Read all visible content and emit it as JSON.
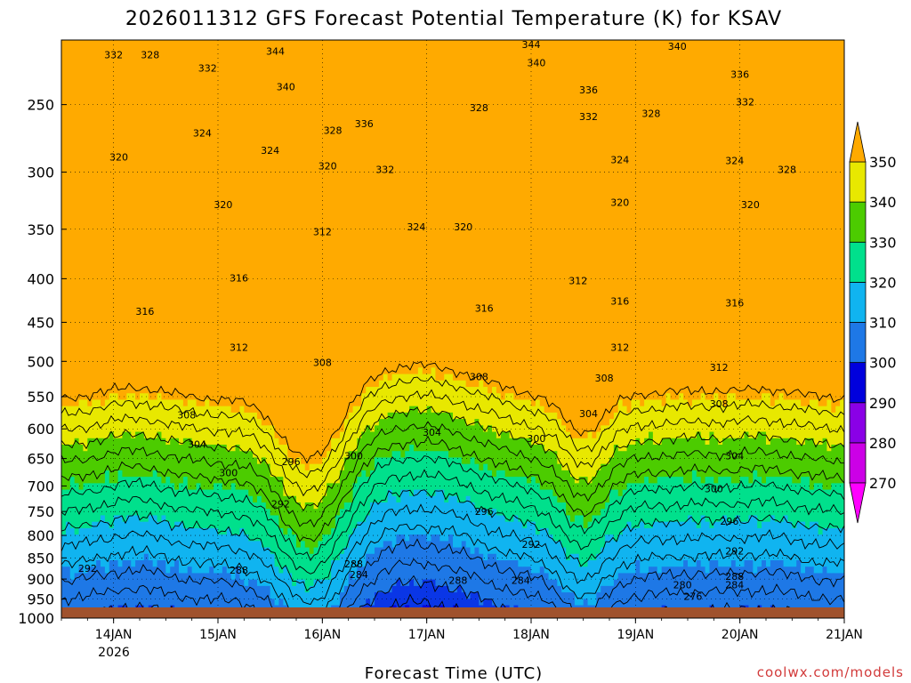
{
  "chart_data": {
    "type": "heatmap",
    "title": "2026011312 GFS Forecast Potential Temperature (K) for KSAV",
    "xlabel": "Forecast Time (UTC)",
    "ylabel": "",
    "x_ticks": [
      "14JAN",
      "15JAN",
      "16JAN",
      "17JAN",
      "18JAN",
      "19JAN",
      "20JAN",
      "21JAN"
    ],
    "x_year_label": "2026",
    "y_ticks": [
      250,
      300,
      350,
      400,
      450,
      500,
      550,
      600,
      650,
      700,
      750,
      800,
      850,
      900,
      950,
      1000
    ],
    "y_scale": "log",
    "ylim": [
      1000,
      210
    ],
    "colorbar": {
      "levels": [
        270,
        280,
        290,
        300,
        310,
        320,
        330,
        340,
        350
      ],
      "colors": [
        "#ff00ff",
        "#cc00e6",
        "#8a00e6",
        "#0000dd",
        "#0a36e6",
        "#1e78e6",
        "#10b4f0",
        "#00e08c",
        "#4ccc00",
        "#e8e800",
        "#ffaa00"
      ],
      "extends": "both"
    },
    "isentrope_labels": [
      {
        "t": 14.0,
        "p": 220,
        "v": "332"
      },
      {
        "t": 14.35,
        "p": 220,
        "v": "328"
      },
      {
        "t": 14.9,
        "p": 228,
        "v": "332"
      },
      {
        "t": 15.55,
        "p": 218,
        "v": "344"
      },
      {
        "t": 15.65,
        "p": 240,
        "v": "340"
      },
      {
        "t": 14.05,
        "p": 290,
        "v": "320"
      },
      {
        "t": 14.85,
        "p": 272,
        "v": "324"
      },
      {
        "t": 15.5,
        "p": 285,
        "v": "324"
      },
      {
        "t": 16.1,
        "p": 270,
        "v": "328"
      },
      {
        "t": 16.4,
        "p": 265,
        "v": "336"
      },
      {
        "t": 16.6,
        "p": 300,
        "v": "332"
      },
      {
        "t": 16.05,
        "p": 297,
        "v": "320"
      },
      {
        "t": 15.05,
        "p": 330,
        "v": "320"
      },
      {
        "t": 16.0,
        "p": 355,
        "v": "312"
      },
      {
        "t": 16.9,
        "p": 350,
        "v": "324"
      },
      {
        "t": 17.35,
        "p": 350,
        "v": "320"
      },
      {
        "t": 17.5,
        "p": 254,
        "v": "328"
      },
      {
        "t": 18.0,
        "p": 214,
        "v": "344"
      },
      {
        "t": 18.05,
        "p": 225,
        "v": "340"
      },
      {
        "t": 18.55,
        "p": 242,
        "v": "336"
      },
      {
        "t": 18.55,
        "p": 260,
        "v": "332"
      },
      {
        "t": 19.15,
        "p": 258,
        "v": "328"
      },
      {
        "t": 18.85,
        "p": 292,
        "v": "324"
      },
      {
        "t": 18.85,
        "p": 328,
        "v": "320"
      },
      {
        "t": 19.4,
        "p": 215,
        "v": "340"
      },
      {
        "t": 20.0,
        "p": 232,
        "v": "336"
      },
      {
        "t": 20.05,
        "p": 250,
        "v": "332"
      },
      {
        "t": 19.95,
        "p": 293,
        "v": "324"
      },
      {
        "t": 20.45,
        "p": 300,
        "v": "328"
      },
      {
        "t": 20.1,
        "p": 330,
        "v": "320"
      },
      {
        "t": 14.3,
        "p": 440,
        "v": "316"
      },
      {
        "t": 15.2,
        "p": 402,
        "v": "316"
      },
      {
        "t": 17.55,
        "p": 436,
        "v": "316"
      },
      {
        "t": 18.45,
        "p": 405,
        "v": "312"
      },
      {
        "t": 18.85,
        "p": 428,
        "v": "316"
      },
      {
        "t": 19.95,
        "p": 430,
        "v": "316"
      },
      {
        "t": 15.2,
        "p": 485,
        "v": "312"
      },
      {
        "t": 16.0,
        "p": 505,
        "v": "308"
      },
      {
        "t": 17.5,
        "p": 525,
        "v": "308"
      },
      {
        "t": 18.7,
        "p": 527,
        "v": "308"
      },
      {
        "t": 18.85,
        "p": 485,
        "v": "312"
      },
      {
        "t": 19.8,
        "p": 512,
        "v": "312"
      },
      {
        "t": 19.8,
        "p": 565,
        "v": "308"
      },
      {
        "t": 14.7,
        "p": 582,
        "v": "308"
      },
      {
        "t": 14.8,
        "p": 630,
        "v": "304"
      },
      {
        "t": 17.05,
        "p": 610,
        "v": "304"
      },
      {
        "t": 18.55,
        "p": 580,
        "v": "304"
      },
      {
        "t": 19.95,
        "p": 650,
        "v": "304"
      },
      {
        "t": 15.1,
        "p": 680,
        "v": "300"
      },
      {
        "t": 15.7,
        "p": 660,
        "v": "296"
      },
      {
        "t": 16.3,
        "p": 650,
        "v": "300"
      },
      {
        "t": 18.05,
        "p": 620,
        "v": "300"
      },
      {
        "t": 19.75,
        "p": 710,
        "v": "300"
      },
      {
        "t": 15.6,
        "p": 740,
        "v": "292"
      },
      {
        "t": 17.55,
        "p": 755,
        "v": "296"
      },
      {
        "t": 19.9,
        "p": 775,
        "v": "296"
      },
      {
        "t": 18.0,
        "p": 825,
        "v": "292"
      },
      {
        "t": 19.95,
        "p": 840,
        "v": "292"
      },
      {
        "t": 13.75,
        "p": 880,
        "v": "292"
      },
      {
        "t": 15.2,
        "p": 885,
        "v": "288"
      },
      {
        "t": 16.3,
        "p": 870,
        "v": "288"
      },
      {
        "t": 16.35,
        "p": 895,
        "v": "284"
      },
      {
        "t": 17.3,
        "p": 910,
        "v": "288"
      },
      {
        "t": 17.9,
        "p": 910,
        "v": "284"
      },
      {
        "t": 19.95,
        "p": 900,
        "v": "288"
      },
      {
        "t": 19.45,
        "p": 920,
        "v": "280"
      },
      {
        "t": 19.95,
        "p": 920,
        "v": "284"
      },
      {
        "t": 19.55,
        "p": 950,
        "v": "276"
      }
    ]
  },
  "footer": {
    "credit": "coolwx.com/models"
  }
}
